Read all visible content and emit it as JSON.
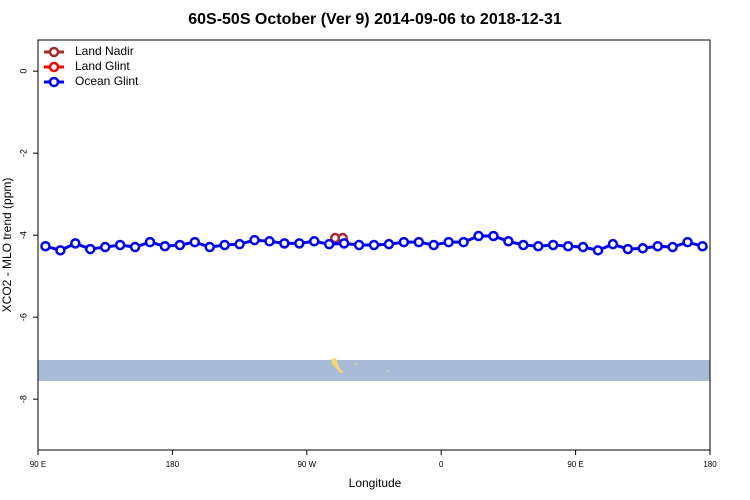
{
  "chart_data": {
    "type": "line",
    "title": "60S-50S October (Ver 9)   2014-09-06 to 2018-12-31",
    "x_label": "Longitude",
    "y_label": "XCO2 - MLO trend (ppm)",
    "xlim": [
      90,
      540
    ],
    "xticks": [
      {
        "value": 90,
        "label": "90 E"
      },
      {
        "value": 180,
        "label": "180"
      },
      {
        "value": 270,
        "label": "90 W"
      },
      {
        "value": 360,
        "label": "0"
      },
      {
        "value": 450,
        "label": "90 E"
      },
      {
        "value": 540,
        "label": "180"
      }
    ],
    "ylim": [
      -9.24,
      0.76
    ],
    "yticks": [
      0,
      -2,
      -4,
      -6,
      -8
    ],
    "legend": "top-left",
    "series": [
      {
        "name": "Land Nadir",
        "color": "#a52a2a",
        "x": [
          289,
          294
        ],
        "values": [
          -4.07,
          -4.07
        ]
      },
      {
        "name": "Land Glint",
        "color": "#ff0000",
        "x": [],
        "values": []
      },
      {
        "name": "Ocean Glint",
        "color": "#0000ff",
        "x": [
          95,
          105,
          115,
          125,
          135,
          145,
          155,
          165,
          175,
          185,
          195,
          205,
          215,
          225,
          235,
          245,
          255,
          265,
          275,
          285,
          295,
          305,
          315,
          325,
          335,
          345,
          355,
          365,
          375,
          385,
          395,
          405,
          415,
          425,
          435,
          445,
          455,
          465,
          475,
          485,
          495,
          505,
          515,
          525,
          535
        ],
        "values": [
          -4.27,
          -4.37,
          -4.2,
          -4.34,
          -4.29,
          -4.24,
          -4.29,
          -4.17,
          -4.27,
          -4.24,
          -4.17,
          -4.29,
          -4.24,
          -4.22,
          -4.12,
          -4.15,
          -4.2,
          -4.2,
          -4.15,
          -4.22,
          -4.2,
          -4.24,
          -4.24,
          -4.22,
          -4.17,
          -4.17,
          -4.24,
          -4.17,
          -4.17,
          -4.02,
          -4.02,
          -4.15,
          -4.24,
          -4.27,
          -4.24,
          -4.27,
          -4.29,
          -4.37,
          -4.22,
          -4.34,
          -4.32,
          -4.27,
          -4.29,
          -4.17,
          -4.27
        ]
      }
    ]
  }
}
